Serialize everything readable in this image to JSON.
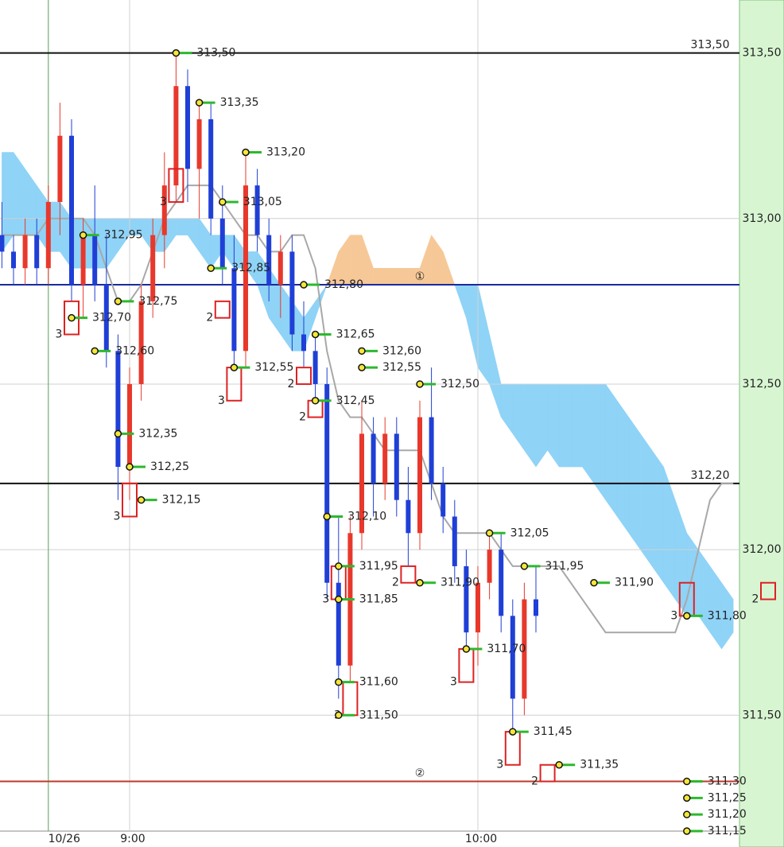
{
  "chart_data": {
    "type": "candlestick",
    "ylim": [
      311.15,
      313.66
    ],
    "yticks": [
      {
        "value": 311.5,
        "label": "311,50"
      },
      {
        "value": 312,
        "label": "312,00"
      },
      {
        "value": 312.5,
        "label": "312,50"
      },
      {
        "value": 313,
        "label": "313,00"
      },
      {
        "value": 313.5,
        "label": "313,50"
      }
    ],
    "grid": true,
    "categories": [
      null,
      null,
      null,
      null,
      "10/26",
      null,
      null,
      null,
      null,
      null,
      null,
      "9:00",
      null,
      null,
      null,
      null,
      null,
      null,
      null,
      null,
      null,
      null,
      null,
      null,
      null,
      null,
      null,
      null,
      null,
      null,
      null,
      null,
      null,
      null,
      null,
      null,
      null,
      null,
      null,
      null,
      null,
      "10:00",
      null,
      null,
      null,
      null,
      null,
      null,
      null,
      null,
      null,
      null,
      null,
      null,
      null,
      null,
      null,
      null,
      null,
      null,
      null,
      null,
      null,
      null
    ],
    "up_color": "#e8382c",
    "down_color": "#1f3fd6",
    "open": [
      312.95,
      312.9,
      312.85,
      312.95,
      312.85,
      313.05,
      313.25,
      312.8,
      312.95,
      312.8,
      312.6,
      312.25,
      312.5,
      312.75,
      312.95,
      313.1,
      313.4,
      313.15,
      313.3,
      313.0,
      312.85,
      312.6,
      313.1,
      312.95,
      312.8,
      312.9,
      312.65,
      312.6,
      312.5,
      311.9,
      311.65,
      312.05,
      312.35,
      312.2,
      312.35,
      312.15,
      312.05,
      312.4,
      312.2,
      312.1,
      311.95,
      311.75,
      311.9,
      312.0,
      311.8,
      311.55,
      311.85,
      null,
      null,
      null,
      null,
      null,
      null,
      null,
      null,
      null,
      null,
      null,
      null,
      null,
      null,
      null,
      null,
      null
    ],
    "high": [
      313.05,
      312.95,
      313.0,
      313.0,
      313.1,
      313.35,
      313.3,
      313.0,
      313.1,
      312.95,
      312.65,
      312.55,
      312.8,
      313.0,
      313.2,
      313.5,
      313.45,
      313.35,
      313.35,
      313.1,
      312.95,
      313.2,
      313.15,
      313.0,
      312.95,
      312.95,
      312.75,
      312.65,
      312.55,
      312.1,
      312.1,
      312.45,
      312.4,
      312.4,
      312.4,
      312.25,
      312.45,
      312.55,
      312.25,
      312.15,
      312.0,
      311.95,
      312.05,
      312.05,
      311.85,
      311.9,
      311.95,
      null,
      null,
      null,
      null,
      null,
      null,
      null,
      null,
      null,
      null,
      null,
      null,
      null,
      null,
      null,
      null,
      null
    ],
    "low": [
      312.85,
      312.8,
      312.8,
      312.8,
      312.8,
      312.95,
      312.75,
      312.7,
      312.75,
      312.55,
      312.15,
      312.15,
      312.45,
      312.7,
      312.85,
      313.05,
      313.05,
      313.0,
      312.95,
      312.8,
      312.55,
      312.55,
      312.9,
      312.75,
      312.7,
      312.6,
      312.55,
      312.45,
      311.85,
      311.55,
      311.6,
      312.0,
      312.1,
      312.15,
      312.1,
      311.95,
      312.0,
      312.15,
      312.05,
      311.9,
      311.7,
      311.65,
      311.85,
      311.75,
      311.45,
      311.5,
      311.75,
      null,
      null,
      null,
      null,
      null,
      null,
      null,
      null,
      null,
      null,
      null,
      null,
      null,
      null,
      null,
      null,
      null
    ],
    "close": [
      312.9,
      312.85,
      312.95,
      312.85,
      313.05,
      313.25,
      312.8,
      312.95,
      312.8,
      312.6,
      312.25,
      312.5,
      312.75,
      312.95,
      313.1,
      313.4,
      313.15,
      313.3,
      313.0,
      312.85,
      312.6,
      313.1,
      312.95,
      312.8,
      312.9,
      312.65,
      312.6,
      312.5,
      311.9,
      311.65,
      312.05,
      312.35,
      312.2,
      312.35,
      312.15,
      312.05,
      312.4,
      312.2,
      312.1,
      311.95,
      311.75,
      311.9,
      312.0,
      311.8,
      311.55,
      311.85,
      311.8,
      null,
      null,
      null,
      null,
      null,
      null,
      null,
      null,
      null,
      null,
      null,
      null,
      null,
      null,
      null,
      null,
      null
    ],
    "cloud": {
      "up_color": "#8fd3f7",
      "down_color": "#f7c897",
      "span_a": [
        312.9,
        312.95,
        312.95,
        312.95,
        312.9,
        312.9,
        312.85,
        312.85,
        312.85,
        312.85,
        312.9,
        312.95,
        312.95,
        312.9,
        312.9,
        312.95,
        312.95,
        312.9,
        312.85,
        312.9,
        312.85,
        312.85,
        312.8,
        312.7,
        312.65,
        312.6,
        312.6,
        312.7,
        312.8,
        312.9,
        312.95,
        312.95,
        312.85,
        312.85,
        312.85,
        312.85,
        312.85,
        312.95,
        312.9,
        312.8,
        312.7,
        312.55,
        312.5,
        312.4,
        312.35,
        312.3,
        312.25,
        312.3,
        312.25,
        312.25,
        312.25,
        312.2,
        312.15,
        312.1,
        312.05,
        312.0,
        311.95,
        311.9,
        311.85,
        311.8,
        311.8,
        311.75,
        311.7,
        311.75
      ],
      "span_b": [
        313.2,
        313.2,
        313.15,
        313.1,
        313.05,
        313.05,
        313.0,
        313.0,
        313.0,
        313.0,
        313.0,
        313.0,
        313.0,
        313.0,
        313.0,
        313.0,
        313.0,
        313.0,
        312.95,
        312.95,
        312.95,
        312.9,
        312.9,
        312.85,
        312.8,
        312.75,
        312.7,
        312.75,
        312.8,
        312.8,
        312.8,
        312.8,
        312.8,
        312.8,
        312.8,
        312.8,
        312.8,
        312.8,
        312.8,
        312.8,
        312.8,
        312.8,
        312.65,
        312.5,
        312.5,
        312.5,
        312.5,
        312.5,
        312.5,
        312.5,
        312.5,
        312.5,
        312.5,
        312.45,
        312.4,
        312.35,
        312.3,
        312.25,
        312.15,
        312.05,
        312.0,
        311.95,
        311.9,
        311.85
      ]
    },
    "base_line": {
      "color": "#a8a8a8",
      "values": [
        312.95,
        312.95,
        312.95,
        312.95,
        313.0,
        313.0,
        313.0,
        313.0,
        312.95,
        312.85,
        312.75,
        312.75,
        312.8,
        312.9,
        313.0,
        313.05,
        313.1,
        313.1,
        313.1,
        313.05,
        313.0,
        312.95,
        312.95,
        312.9,
        312.9,
        312.95,
        312.95,
        312.85,
        312.6,
        312.45,
        312.4,
        312.4,
        312.35,
        312.3,
        312.3,
        312.3,
        312.3,
        312.2,
        312.1,
        312.05,
        312.05,
        312.05,
        312.05,
        312.0,
        311.95,
        311.95,
        311.95,
        311.95,
        311.95,
        311.9,
        311.85,
        311.8,
        311.75,
        311.75,
        311.75,
        311.75,
        311.75,
        311.75,
        311.75,
        311.85,
        312.0,
        312.15,
        312.2,
        312.2
      ]
    },
    "levels": [
      {
        "value": 313.5,
        "color": "#111111",
        "label": "313,50",
        "bar": 61
      },
      {
        "value": 312.8,
        "color": "#1a2a9c",
        "label": "①",
        "bar": 36
      },
      {
        "value": 312.2,
        "color": "#111111",
        "label": "312,20",
        "bar": 61
      },
      {
        "value": 311.3,
        "color": "#c0392b",
        "label": "②",
        "bar": 36
      }
    ],
    "annotations": [
      {
        "label": "313,50",
        "value": 313.5,
        "bar": 15
      },
      {
        "label": "313,35",
        "value": 313.35,
        "bar": 17
      },
      {
        "label": "313,20",
        "value": 313.2,
        "bar": 21
      },
      {
        "label": "313,05",
        "value": 313.05,
        "bar": 19
      },
      {
        "label": "312,95",
        "value": 312.95,
        "bar": 7
      },
      {
        "label": "312,85",
        "value": 312.85,
        "bar": 18
      },
      {
        "label": "312,80",
        "value": 312.8,
        "bar": 26
      },
      {
        "label": "312,75",
        "value": 312.75,
        "bar": 10
      },
      {
        "label": "312,70",
        "value": 312.7,
        "bar": 6
      },
      {
        "label": "312,65",
        "value": 312.65,
        "bar": 27
      },
      {
        "label": "312,60",
        "value": 312.6,
        "bar": 31
      },
      {
        "label": "312,55",
        "value": 312.55,
        "bar": 31
      },
      {
        "label": "312,50",
        "value": 312.5,
        "bar": 36
      },
      {
        "label": "312,60",
        "value": 312.6,
        "bar": 8
      },
      {
        "label": "312,55",
        "value": 312.55,
        "bar": 20
      },
      {
        "label": "312,45",
        "value": 312.45,
        "bar": 27
      },
      {
        "label": "312,35",
        "value": 312.35,
        "bar": 10
      },
      {
        "label": "312,25",
        "value": 312.25,
        "bar": 11
      },
      {
        "label": "312,15",
        "value": 312.15,
        "bar": 12
      },
      {
        "label": "312,10",
        "value": 312.1,
        "bar": 28
      },
      {
        "label": "312,05",
        "value": 312.05,
        "bar": 42
      },
      {
        "label": "311,95",
        "value": 311.95,
        "bar": 45
      },
      {
        "label": "311,90",
        "value": 311.9,
        "bar": 51
      },
      {
        "label": "311,95",
        "value": 311.95,
        "bar": 29
      },
      {
        "label": "311,85",
        "value": 311.85,
        "bar": 29
      },
      {
        "label": "311,90",
        "value": 311.9,
        "bar": 36
      },
      {
        "label": "311,60",
        "value": 311.6,
        "bar": 29
      },
      {
        "label": "311,50",
        "value": 311.5,
        "bar": 29
      },
      {
        "label": "311,70",
        "value": 311.7,
        "bar": 40
      },
      {
        "label": "311,45",
        "value": 311.45,
        "bar": 44
      },
      {
        "label": "311,35",
        "value": 311.35,
        "bar": 48
      },
      {
        "label": "311,80",
        "value": 311.8,
        "bar": 59
      },
      {
        "label": "311,30",
        "value": 311.3,
        "bar": 59
      },
      {
        "label": "311,25",
        "value": 311.25,
        "bar": 59
      },
      {
        "label": "311,20",
        "value": 311.2,
        "bar": 59
      },
      {
        "label": "311,15",
        "value": 311.15,
        "bar": 59
      }
    ],
    "boxes": [
      {
        "count": 3,
        "bar": 6,
        "top": 312.75,
        "bottom": 312.65
      },
      {
        "count": 3,
        "bar": 11,
        "top": 312.2,
        "bottom": 312.1
      },
      {
        "count": 3,
        "bar": 15,
        "top": 313.15,
        "bottom": 313.05
      },
      {
        "count": 2,
        "bar": 19,
        "top": 312.75,
        "bottom": 312.7
      },
      {
        "count": 3,
        "bar": 20,
        "top": 312.55,
        "bottom": 312.45
      },
      {
        "count": 2,
        "bar": 26,
        "top": 312.55,
        "bottom": 312.5
      },
      {
        "count": 2,
        "bar": 27,
        "top": 312.45,
        "bottom": 312.4
      },
      {
        "count": 3,
        "bar": 29,
        "top": 311.95,
        "bottom": 311.85
      },
      {
        "count": 3,
        "bar": 30,
        "top": 311.6,
        "bottom": 311.5
      },
      {
        "count": 2,
        "bar": 35,
        "top": 311.95,
        "bottom": 311.9
      },
      {
        "count": 3,
        "bar": 40,
        "top": 311.7,
        "bottom": 311.6
      },
      {
        "count": 3,
        "bar": 44,
        "top": 311.45,
        "bottom": 311.35
      },
      {
        "count": 2,
        "bar": 47,
        "top": 311.35,
        "bottom": 311.3
      },
      {
        "count": 3,
        "bar": 59,
        "top": 311.9,
        "bottom": 311.8
      },
      {
        "count": 2,
        "bar": 66,
        "top": 311.9,
        "bottom": 311.85
      }
    ]
  }
}
